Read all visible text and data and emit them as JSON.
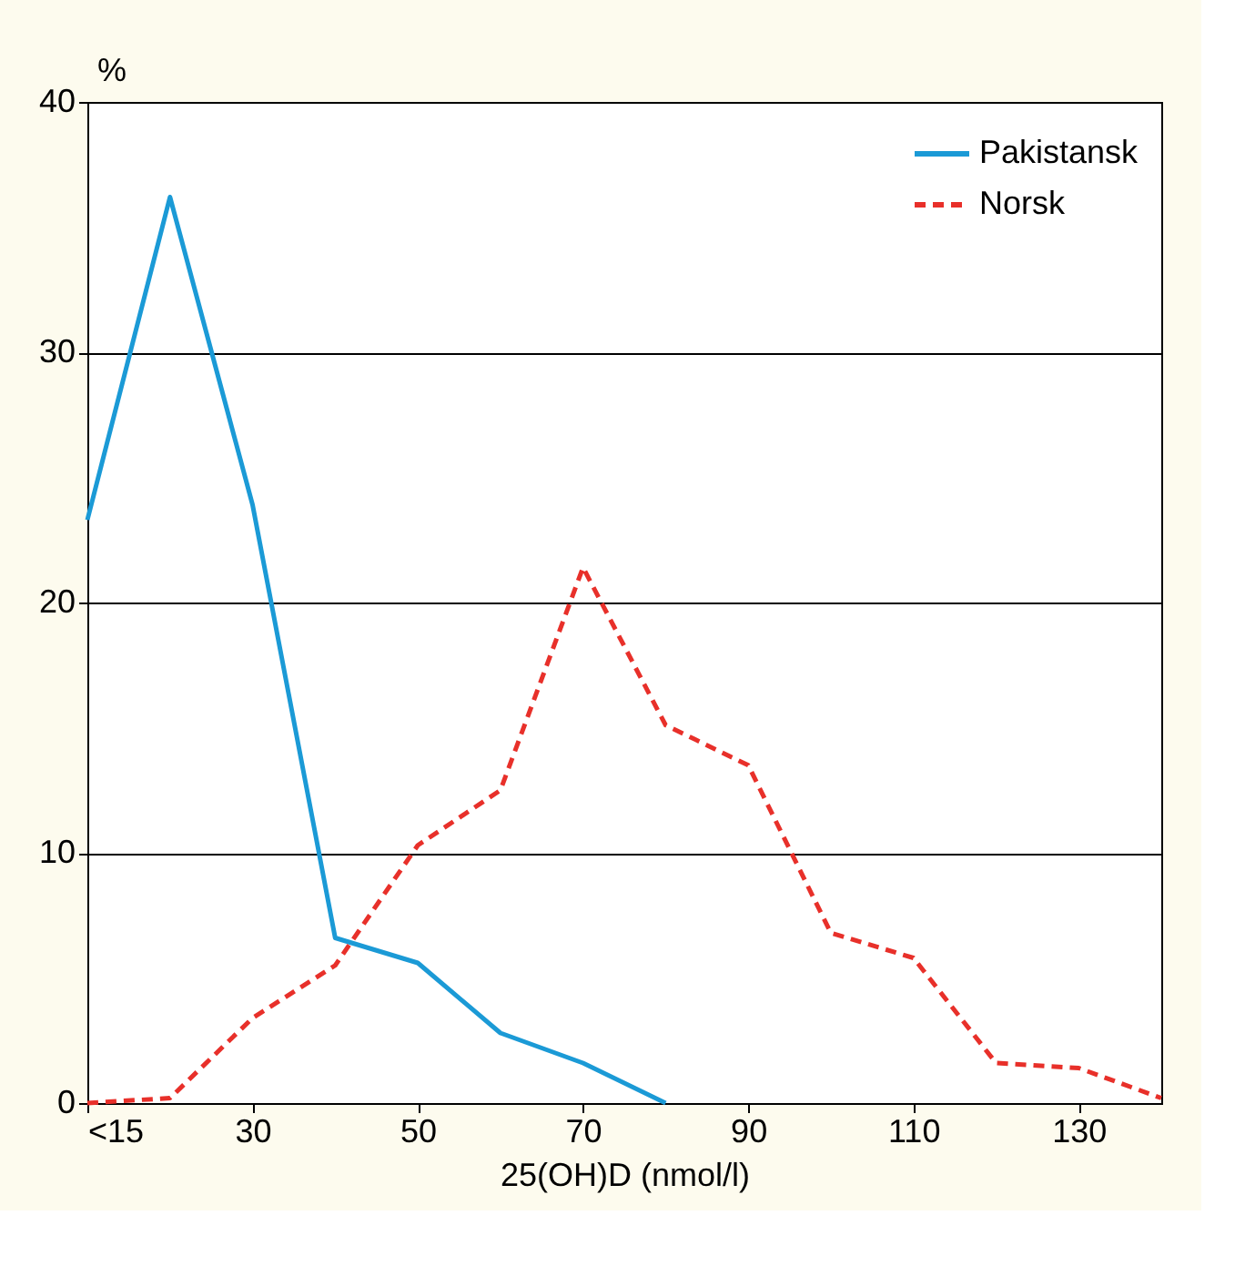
{
  "chart_data": {
    "type": "line",
    "xlabel": "25(OH)D (nmol/l)",
    "ylabel": "%",
    "x": [
      10,
      20,
      30,
      40,
      50,
      60,
      70,
      80,
      90,
      100,
      110,
      120,
      130,
      140
    ],
    "xlim": [
      10,
      140
    ],
    "xticks": [
      {
        "value": 10,
        "label": "<15"
      },
      30,
      50,
      70,
      90,
      110,
      130
    ],
    "ylim": [
      0,
      40
    ],
    "yticks": [
      0,
      10,
      20,
      30,
      40
    ],
    "grid": "y",
    "legend": "top right",
    "marker": "none",
    "series": [
      {
        "name": "Pakistansk",
        "color": "#1b9ad6",
        "line_style": "solid",
        "x": [
          10,
          20,
          30,
          40,
          50,
          60,
          70,
          80
        ],
        "values": [
          23.3,
          36.2,
          23.9,
          6.6,
          5.6,
          2.8,
          1.6,
          0
        ]
      },
      {
        "name": "Norsk",
        "color": "#e8302a",
        "line_style": "dashed",
        "values": [
          0,
          0.2,
          3.4,
          5.5,
          10.3,
          12.5,
          21.4,
          15.1,
          13.5,
          6.8,
          5.8,
          1.6,
          1.4,
          0.2
        ]
      }
    ]
  }
}
